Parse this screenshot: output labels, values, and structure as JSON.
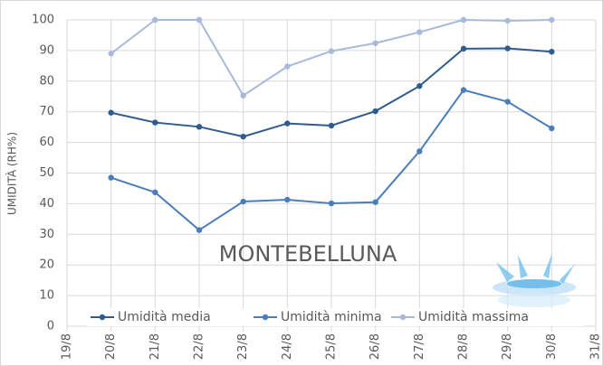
{
  "chart_data": {
    "type": "line",
    "y_label": "UMIDITÀ (RH%)",
    "annotation": "MONTEBELLUNA",
    "categories": [
      "19/8",
      "20/8",
      "21/8",
      "22/8",
      "23/8",
      "24/8",
      "25/8",
      "26/8",
      "27/8",
      "28/8",
      "29/8",
      "30/8",
      "31/8"
    ],
    "series": [
      {
        "name": "Umidità media",
        "color": "#2f5b8e",
        "values": [
          null,
          69.7,
          66.5,
          65.1,
          61.9,
          66.2,
          65.5,
          70.2,
          78.4,
          90.6,
          90.7,
          89.6,
          null
        ]
      },
      {
        "name": "Umidità minima",
        "color": "#4a7ebb",
        "values": [
          null,
          48.5,
          43.7,
          31.4,
          40.7,
          41.3,
          40.1,
          40.5,
          57.1,
          77.1,
          73.3,
          64.6,
          null
        ]
      },
      {
        "name": "Umidità massima",
        "color": "#a8bad9",
        "values": [
          null,
          89,
          100,
          100,
          75.3,
          84.8,
          89.8,
          92.4,
          96,
          100,
          99.7,
          100,
          null
        ]
      }
    ],
    "ylim": [
      0,
      100
    ],
    "yticks": [
      0,
      10,
      20,
      30,
      40,
      50,
      60,
      70,
      80,
      90,
      100
    ],
    "grid": true
  }
}
